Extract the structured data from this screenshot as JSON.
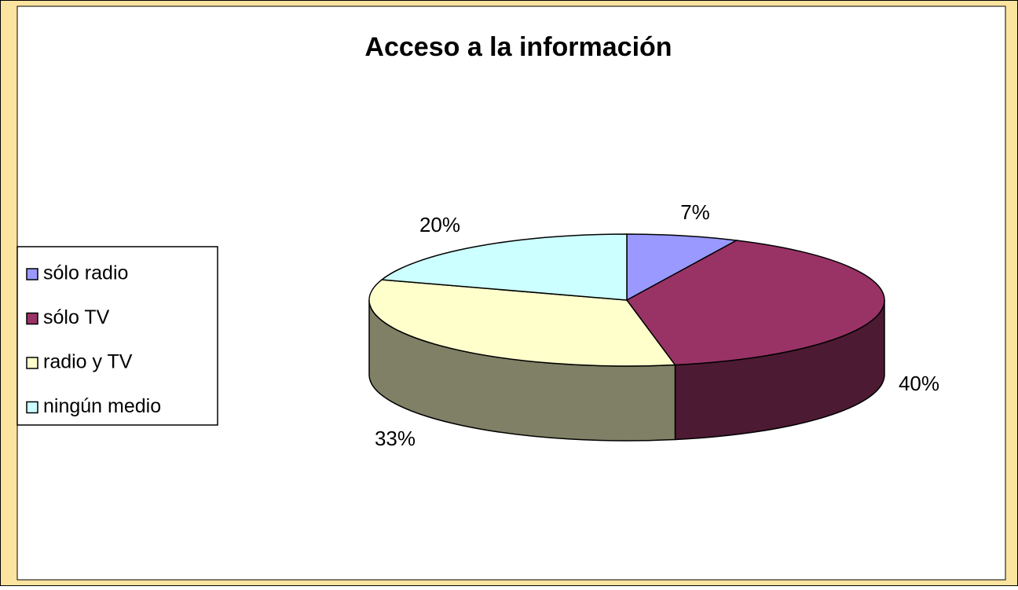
{
  "chart_data": {
    "type": "pie",
    "title": "Acceso a la información",
    "categories": [
      "sólo radio",
      "sólo TV",
      "radio y TV",
      "ningún medio"
    ],
    "values": [
      7,
      40,
      33,
      20
    ],
    "value_labels": [
      "7%",
      "40%",
      "33%",
      "20%"
    ],
    "colors": [
      "#9999ff",
      "#993366",
      "#ffffcc",
      "#ccffff"
    ],
    "legend": "left"
  }
}
